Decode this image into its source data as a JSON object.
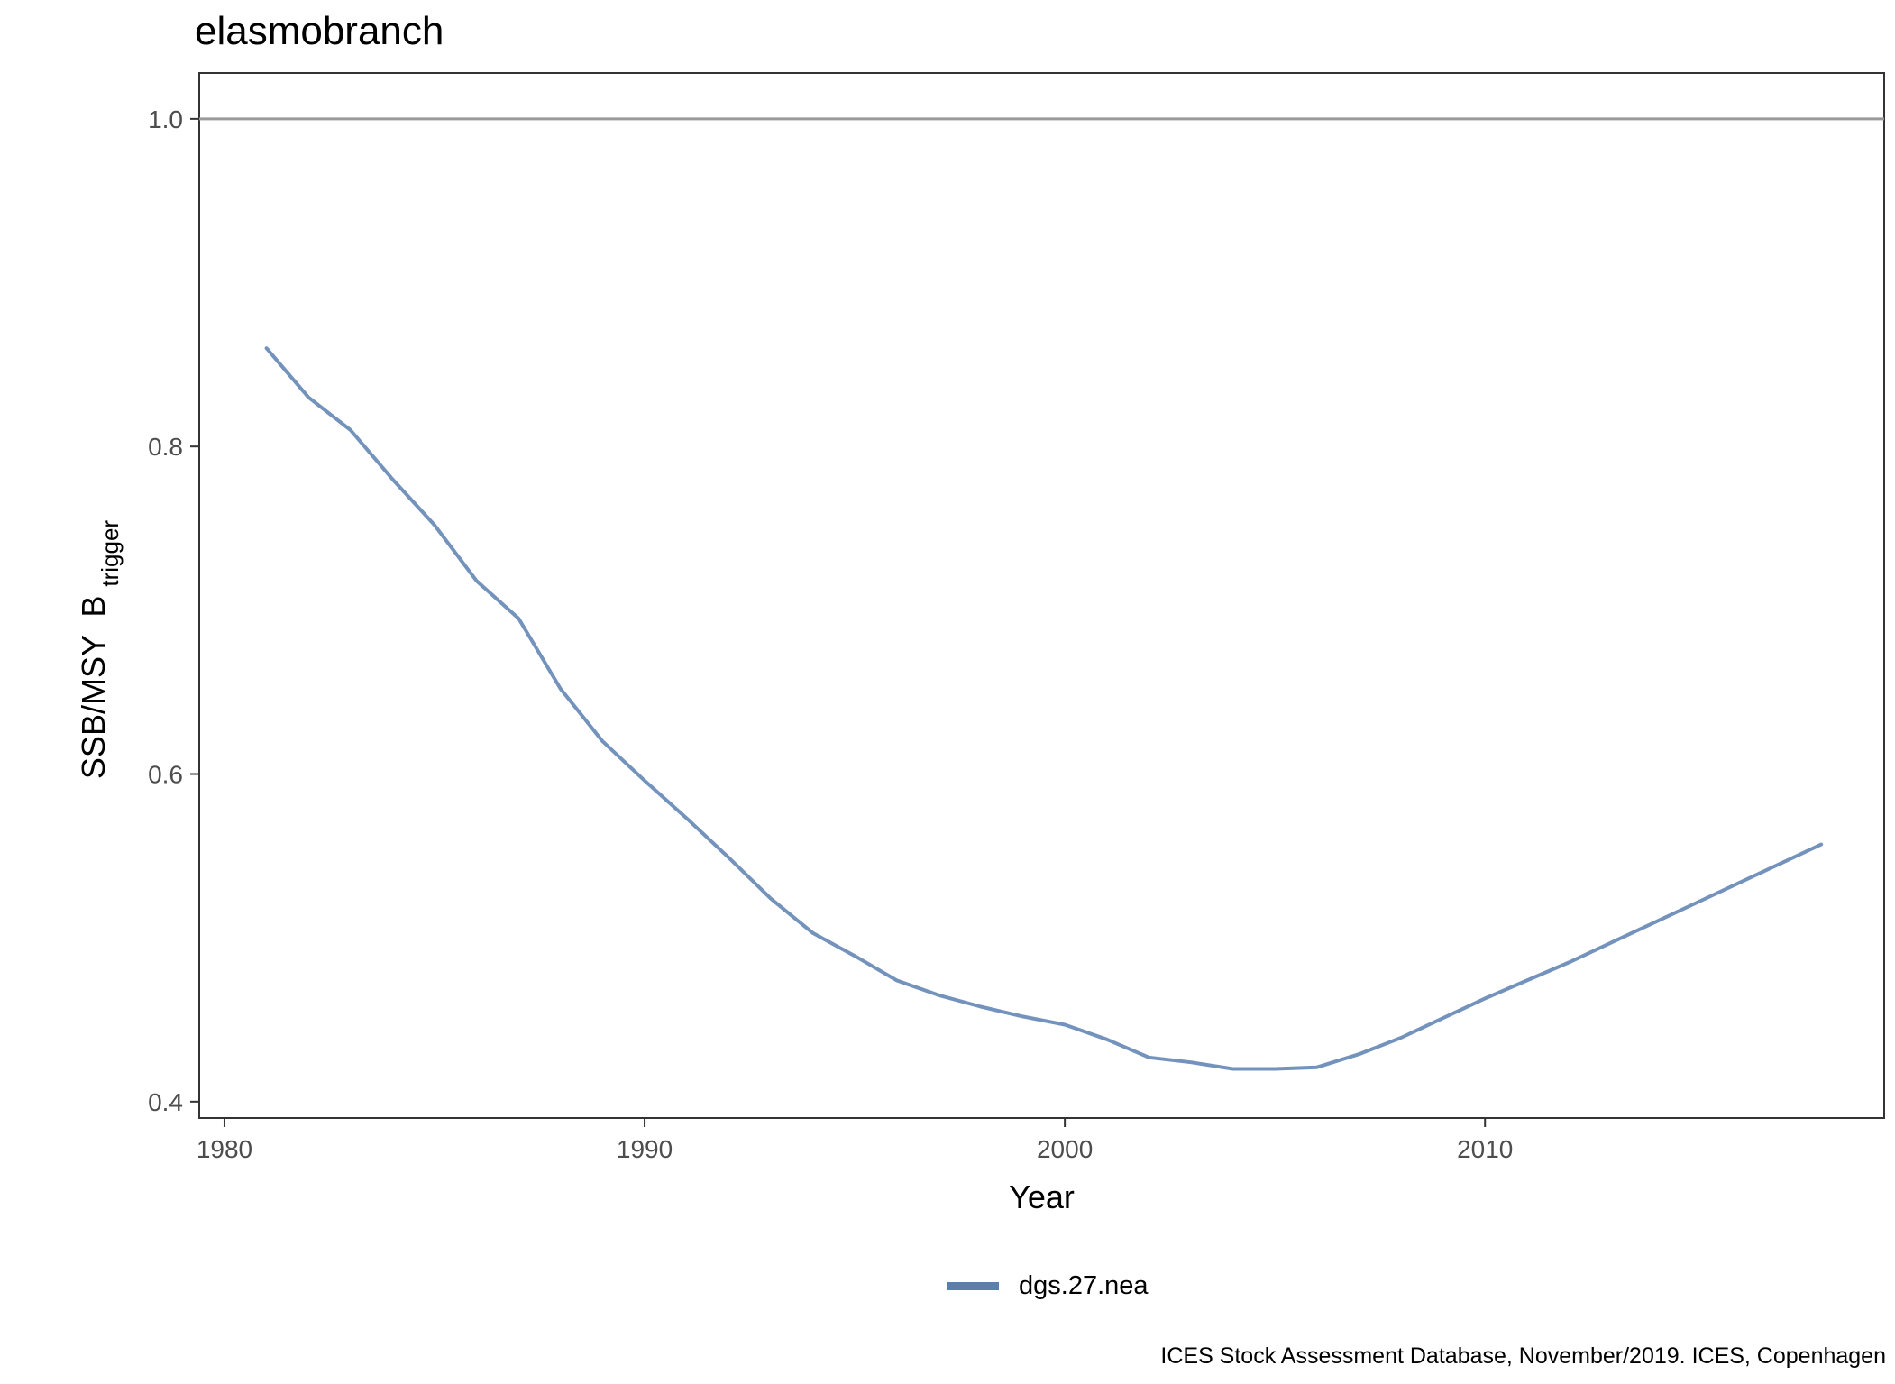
{
  "chart_data": {
    "type": "line",
    "title": "elasmobranch",
    "xlabel": "Year",
    "ylabel": "SSB/MSY",
    "ylabel_b": "B",
    "ylabel_sub": "trigger",
    "caption": "ICES Stock Assessment Database, November/2019. ICES, Copenhagen",
    "xlim": [
      1979.4,
      2019.5
    ],
    "ylim": [
      0.39,
      1.028
    ],
    "x_ticks": [
      1980,
      1990,
      2000,
      2010
    ],
    "x_tick_labels": [
      "1980",
      "1990",
      "2000",
      "2010"
    ],
    "y_ticks": [
      0.4,
      0.6,
      0.8,
      1.0
    ],
    "y_tick_labels": [
      "0.4",
      "0.6",
      "0.8",
      "1.0"
    ],
    "reference_line": {
      "y": 1.0,
      "color": "#999999"
    },
    "grid": false,
    "legend_position": "bottom",
    "series": [
      {
        "name": "dgs.27.nea",
        "color": "#7393bd",
        "x": [
          1981,
          1982,
          1983,
          1984,
          1985,
          1986,
          1987,
          1988,
          1989,
          1990,
          1991,
          1992,
          1993,
          1994,
          1995,
          1996,
          1997,
          1998,
          1999,
          2000,
          2001,
          2002,
          2003,
          2004,
          2005,
          2006,
          2007,
          2008,
          2009,
          2010,
          2011,
          2012,
          2013,
          2014,
          2015,
          2016,
          2017,
          2018
        ],
        "y": [
          0.86,
          0.83,
          0.81,
          0.78,
          0.752,
          0.718,
          0.695,
          0.652,
          0.62,
          0.596,
          0.573,
          0.549,
          0.524,
          0.503,
          0.489,
          0.474,
          0.465,
          0.458,
          0.452,
          0.447,
          0.438,
          0.427,
          0.424,
          0.42,
          0.42,
          0.421,
          0.429,
          0.439,
          0.451,
          0.463,
          0.474,
          0.485,
          0.497,
          0.509,
          0.521,
          0.533,
          0.545,
          0.557
        ]
      }
    ]
  }
}
